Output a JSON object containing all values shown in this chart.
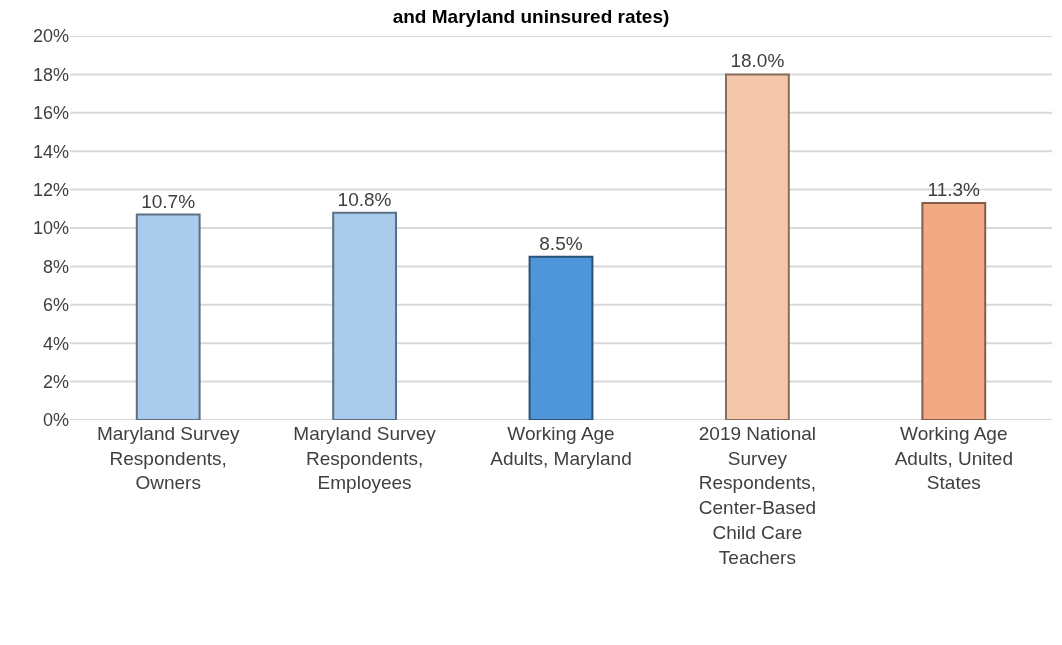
{
  "chart_data": {
    "type": "bar",
    "title": "and Maryland uninsured rates)",
    "categories": [
      "Maryland Survey Respondents, Owners",
      "Maryland Survey Respondents, Employees",
      "Working Age Adults, Maryland",
      "2019 National Survey Respondents, Center-Based Child Care Teachers",
      "Working Age Adults, United States"
    ],
    "values": [
      10.7,
      10.8,
      8.5,
      18.0,
      11.3
    ],
    "value_labels": [
      "10.7%",
      "10.8%",
      "8.5%",
      "18.0%",
      "11.3%"
    ],
    "colors": [
      "#a9cbec",
      "#a9cbec",
      "#4e95d9",
      "#f5c6aa",
      "#f1aa84"
    ],
    "ylim": [
      0,
      20
    ],
    "yticks": [
      {
        "value": 0,
        "label": "0%"
      },
      {
        "value": 2,
        "label": "2%"
      },
      {
        "value": 4,
        "label": "4%"
      },
      {
        "value": 6,
        "label": "6%"
      },
      {
        "value": 8,
        "label": "8%"
      },
      {
        "value": 10,
        "label": "10%"
      },
      {
        "value": 12,
        "label": "12%"
      },
      {
        "value": 14,
        "label": "14%"
      },
      {
        "value": 16,
        "label": "16%"
      },
      {
        "value": 18,
        "label": "18%"
      },
      {
        "value": 20,
        "label": "20%"
      }
    ],
    "grid": "y"
  }
}
